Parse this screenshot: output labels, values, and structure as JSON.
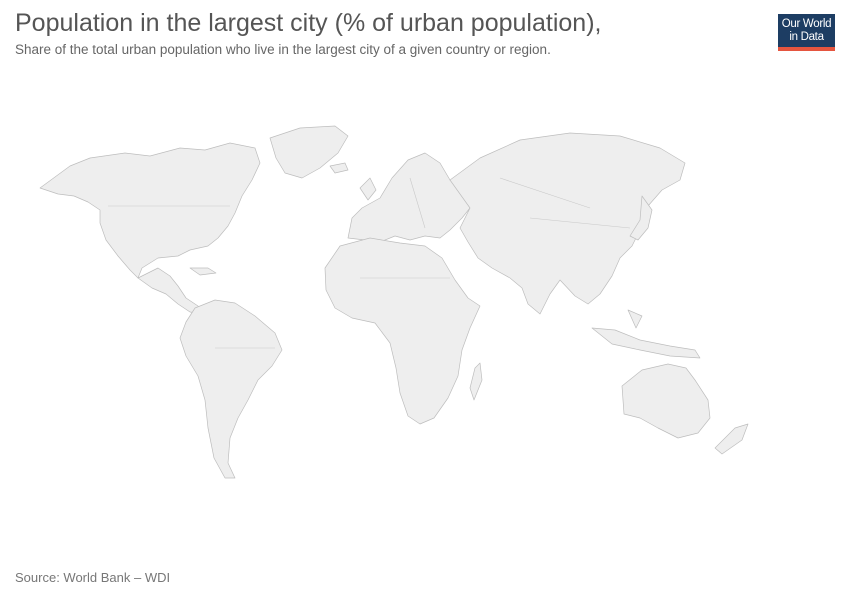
{
  "header": {
    "title": "Population in the largest city (% of urban population),",
    "subtitle": "Share of the total urban population who live in the largest city of a given country or region."
  },
  "logo": {
    "line1": "Our World",
    "line2": "in Data",
    "background_color": "#1d3d63",
    "accent_color": "#e5553f"
  },
  "map": {
    "land_color": "#eeeeee",
    "border_color": "#bdbdbd"
  },
  "footer": {
    "source": "Source: World Bank – WDI"
  }
}
